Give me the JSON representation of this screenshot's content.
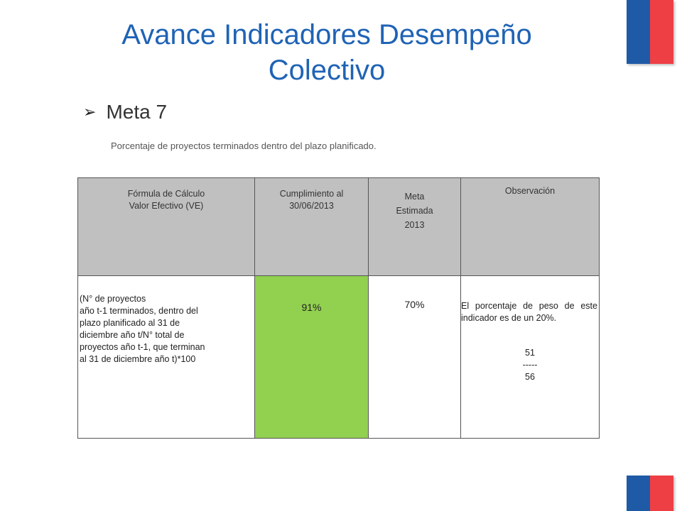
{
  "slide": {
    "title": "Avance Indicadores Desempeño Colectivo",
    "meta_title": "Meta 7",
    "description": "Porcentaje de proyectos terminados dentro del plazo planificado.",
    "bullet_icon": "arrow-bullet-icon"
  },
  "table": {
    "headers": {
      "formula": "Fórmula de Cálculo\nValor Efectivo  (VE)",
      "cumplimiento": "Cumplimiento al\n30/06/2013",
      "meta": "Meta\nEstimada\n2013",
      "observacion": "Observación"
    },
    "row": {
      "formula": "(N° de proyectos\naño t-1 terminados, dentro del\nplazo planificado al 31 de\ndiciembre año t/N° total de\nproyectos año t-1, que terminan\nal 31 de diciembre año t)*100",
      "cumplimiento": "91%",
      "meta": "70%",
      "observacion_text": "El porcentaje de peso de este indicador es de un  20%.",
      "obs_numerator": "51",
      "obs_separator": "-----",
      "obs_denominator": "56"
    }
  },
  "colors": {
    "title": "#1f63b5",
    "header_bg": "#c0c0c0",
    "highlight_green": "#92d050",
    "flag_blue": "#1f5aa6",
    "flag_red": "#ee3f45"
  }
}
